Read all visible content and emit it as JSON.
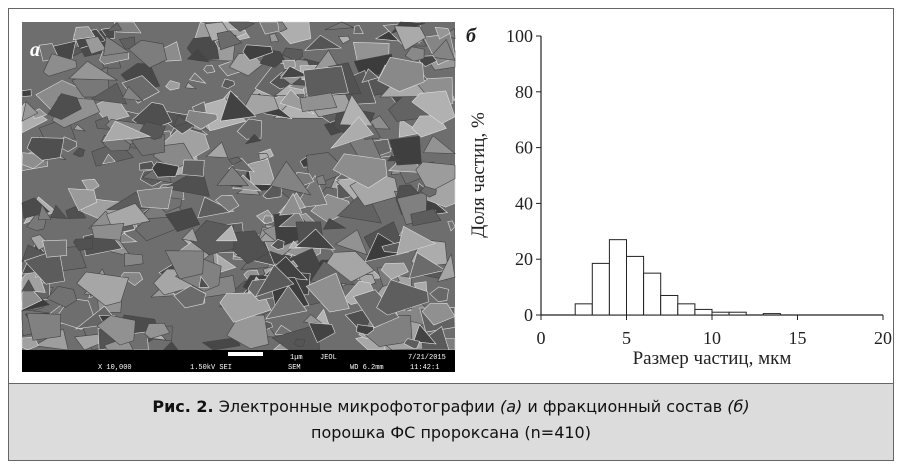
{
  "image": {
    "label": "а",
    "scale_text": "1μm",
    "brand": "JEOL",
    "date": "7/21/2015",
    "magnification": "X 10,000",
    "voltage": "1.50kV SEI",
    "mode": "SEM",
    "wd": "WD 6.2mm",
    "time": "11:42:1"
  },
  "chart_data": {
    "type": "histogram",
    "label": "б",
    "xlabel": "Размер частиц, мкм",
    "ylabel": "Доля частиц, %",
    "bins": [
      2,
      3,
      4,
      5,
      6,
      7,
      8,
      9,
      10,
      11,
      12,
      13,
      14
    ],
    "values": [
      4,
      18.5,
      27,
      21,
      15,
      7,
      4,
      2,
      1,
      1,
      0,
      0.5
    ],
    "color": "#ffffff",
    "xlim": [
      0,
      20
    ],
    "xticks": [
      0,
      5,
      10,
      15,
      20
    ],
    "ylim": [
      0,
      100
    ],
    "yticks": [
      0,
      20,
      40,
      60,
      80,
      100
    ]
  },
  "caption": {
    "figure": "Рис. 2.",
    "part1": "Электронные микрофотографии",
    "ref_a": "(а)",
    "part2": "и фракционный состав",
    "ref_b": "(б)",
    "line2": "порошка ФС пророксана (n=410)"
  }
}
